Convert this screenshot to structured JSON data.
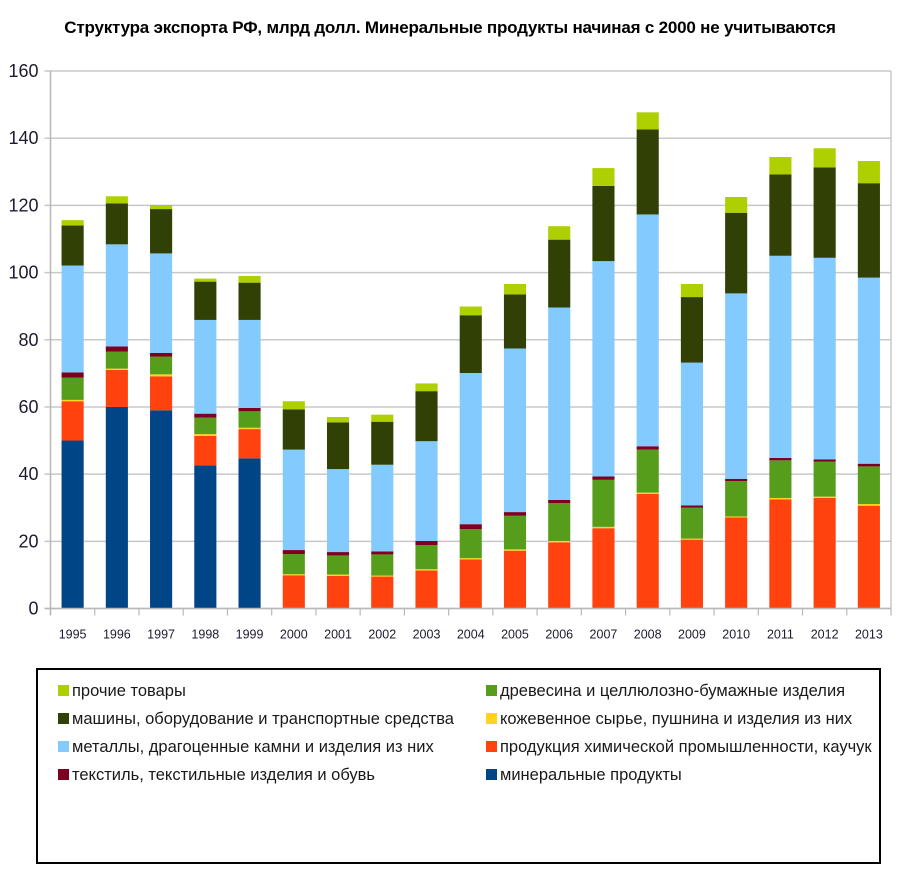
{
  "chart_data": {
    "type": "bar",
    "stacked": true,
    "title": "Структура экспорта РФ, млрд долл. Минеральные продукты начиная с 2000 не учитываются",
    "xlabel": "",
    "ylabel": "",
    "ylim": [
      0,
      160
    ],
    "yticks": [
      0,
      20,
      40,
      60,
      80,
      100,
      120,
      140,
      160
    ],
    "grid": true,
    "legend_position": "bottom",
    "categories": [
      "1995",
      "1996",
      "1997",
      "1998",
      "1999",
      "2000",
      "2001",
      "2002",
      "2003",
      "2004",
      "2005",
      "2006",
      "2007",
      "2008",
      "2009",
      "2010",
      "2011",
      "2012",
      "2013"
    ],
    "series": [
      {
        "name": "минеральные продукты",
        "color": "#004586",
        "values": [
          50.0,
          60.0,
          59.0,
          42.6,
          44.7,
          0,
          0,
          0,
          0,
          0,
          0,
          0,
          0,
          0,
          0,
          0,
          0,
          0,
          0
        ]
      },
      {
        "name": "продукция химической промышленности, каучук",
        "color": "#ff420e",
        "values": [
          11.7,
          11.0,
          10.1,
          8.8,
          8.7,
          9.9,
          9.7,
          9.5,
          11.3,
          14.6,
          17.2,
          19.7,
          23.9,
          34.1,
          20.5,
          27.1,
          32.5,
          32.9,
          30.6
        ]
      },
      {
        "name": "кожевенное сырье, пушнина и изделия из них",
        "color": "#ffd320",
        "values": [
          0.4,
          0.4,
          0.6,
          0.5,
          0.4,
          0.3,
          0.4,
          0.3,
          0.4,
          0.4,
          0.4,
          0.4,
          0.4,
          0.4,
          0.3,
          0.3,
          0.4,
          0.4,
          0.5
        ]
      },
      {
        "name": "древесина и целлюлозно-бумажные изделия",
        "color": "#579d1c",
        "values": [
          6.6,
          5.1,
          5.3,
          4.9,
          4.9,
          6.0,
          5.7,
          6.3,
          7.2,
          8.6,
          10.0,
          11.3,
          14.0,
          12.8,
          9.2,
          10.5,
          11.2,
          10.4,
          11.2
        ]
      },
      {
        "name": "текстиль, текстильные изделия  и обувь",
        "color": "#7e0021",
        "values": [
          1.6,
          1.5,
          1.1,
          1.2,
          1.0,
          1.2,
          1.0,
          0.9,
          1.2,
          1.5,
          1.1,
          0.9,
          1.0,
          1.0,
          0.7,
          0.7,
          0.7,
          0.7,
          0.8
        ]
      },
      {
        "name": "металлы, драгоценные камни и изделия из них",
        "color": "#83caff",
        "values": [
          31.8,
          30.4,
          29.6,
          27.9,
          26.2,
          29.9,
          24.7,
          25.8,
          29.7,
          45.0,
          48.7,
          57.3,
          64.1,
          69.0,
          42.5,
          55.2,
          60.2,
          60.0,
          55.4
        ]
      },
      {
        "name": "машины, оборудование и транспортные средства",
        "color": "#314004",
        "values": [
          11.9,
          12.2,
          13.2,
          11.4,
          11.1,
          12.0,
          13.9,
          12.8,
          14.9,
          17.2,
          16.1,
          20.2,
          22.4,
          25.3,
          19.5,
          24.0,
          24.2,
          26.9,
          28.1
        ]
      },
      {
        "name": "прочие товары",
        "color": "#aecf00",
        "values": [
          1.6,
          2.1,
          1.2,
          0.9,
          2.0,
          2.4,
          1.6,
          2.1,
          2.3,
          2.6,
          3.1,
          4.0,
          5.3,
          5.1,
          3.9,
          4.7,
          5.2,
          5.7,
          6.6
        ]
      }
    ]
  },
  "legend": {
    "left": [
      {
        "label": "прочие товары",
        "color": "#aecf00"
      },
      {
        "label": "машины, оборудование и транспортные средства",
        "color": "#314004"
      },
      {
        "label": "металлы, драгоценные камни и изделия из них",
        "color": "#83caff"
      },
      {
        "label": "текстиль, текстильные изделия  и обувь",
        "color": "#7e0021"
      }
    ],
    "right": [
      {
        "label": "древесина и целлюлозно-бумажные изделия",
        "color": "#579d1c"
      },
      {
        "label": "кожевенное сырье, пушнина и изделия из них",
        "color": "#ffd320"
      },
      {
        "label": "продукция химической промышленности, каучук",
        "color": "#ff420e"
      },
      {
        "label": "минеральные продукты",
        "color": "#004586"
      }
    ]
  }
}
